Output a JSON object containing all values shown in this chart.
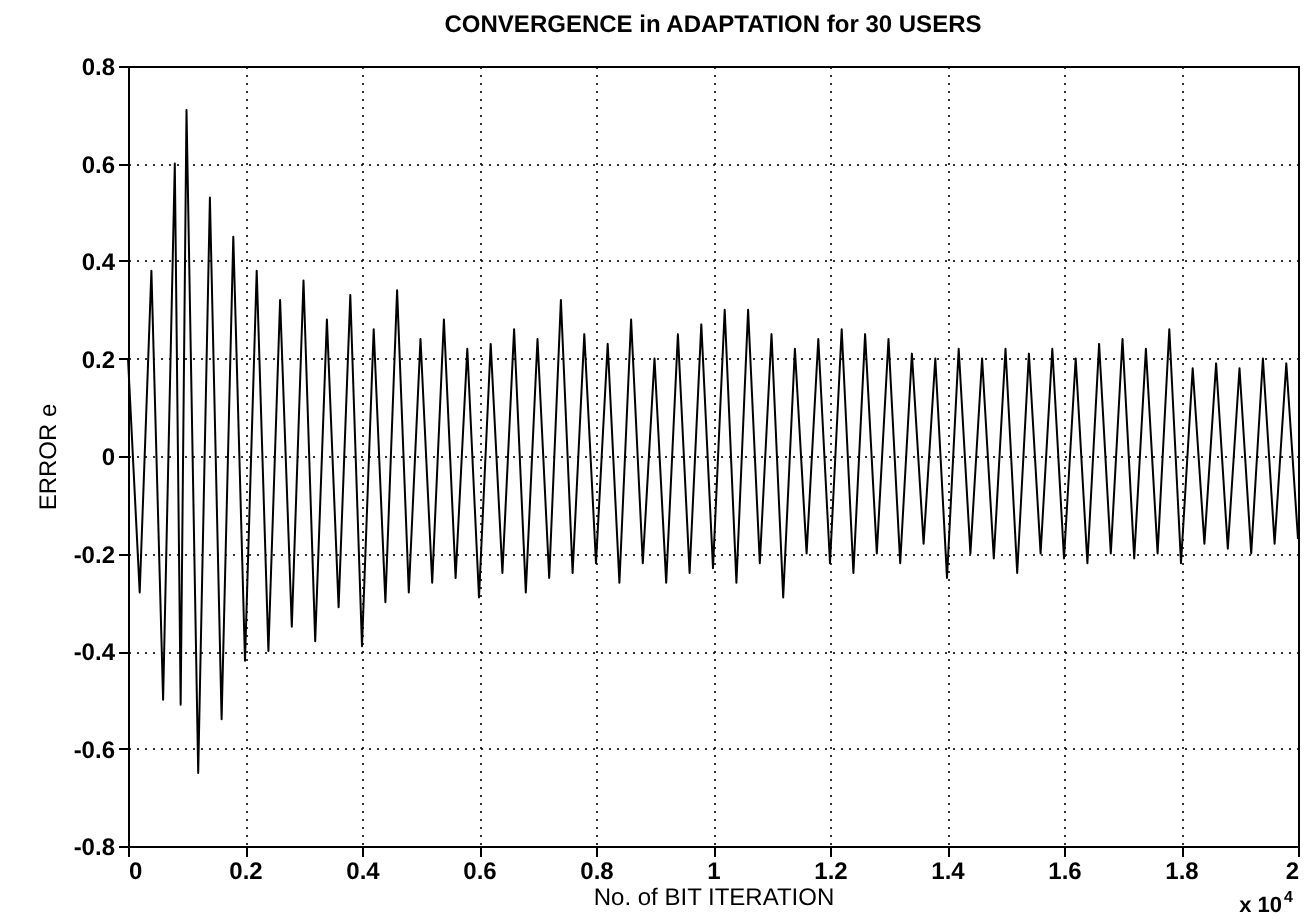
{
  "chart_data": {
    "type": "line",
    "title": "CONVERGENCE in ADAPTATION for 30 USERS",
    "xlabel": "No. of BIT ITERATION",
    "ylabel": "ERROR e",
    "annotations": [
      "x 10$^{4}$"
    ],
    "x": [
      0,
      0.02,
      0.04,
      0.06,
      0.08,
      0.09,
      0.1,
      0.12,
      0.14,
      0.16,
      0.18,
      0.2,
      0.22,
      0.24,
      0.26,
      0.28,
      0.3,
      0.32,
      0.34,
      0.36,
      0.38,
      0.4,
      0.42,
      0.44,
      0.46,
      0.48,
      0.5,
      0.52,
      0.54,
      0.56,
      0.58,
      0.6,
      0.62,
      0.64,
      0.66,
      0.68,
      0.7,
      0.72,
      0.74,
      0.76,
      0.78,
      0.8,
      0.82,
      0.84,
      0.86,
      0.88,
      0.9,
      0.92,
      0.94,
      0.96,
      0.98,
      1,
      1.02,
      1.04,
      1.06,
      1.08,
      1.1,
      1.12,
      1.14,
      1.16,
      1.18,
      1.2,
      1.22,
      1.24,
      1.26,
      1.28,
      1.3,
      1.32,
      1.34,
      1.36,
      1.38,
      1.4,
      1.42,
      1.44,
      1.46,
      1.48,
      1.5,
      1.52,
      1.54,
      1.56,
      1.58,
      1.6,
      1.62,
      1.64,
      1.66,
      1.68,
      1.7,
      1.72,
      1.74,
      1.76,
      1.78,
      1.8,
      1.82,
      1.84,
      1.86,
      1.88,
      1.9,
      1.92,
      1.94,
      1.96,
      1.98,
      2
    ],
    "series": [
      {
        "color": "#000000",
        "values": [
          0.2,
          -0.28,
          0.38,
          -0.5,
          0.6,
          -0.51,
          0.71,
          -0.65,
          0.53,
          -0.54,
          0.45,
          -0.42,
          0.38,
          -0.4,
          0.32,
          -0.35,
          0.36,
          -0.38,
          0.28,
          -0.31,
          0.33,
          -0.39,
          0.26,
          -0.3,
          0.34,
          -0.28,
          0.24,
          -0.26,
          0.28,
          -0.25,
          0.22,
          -0.29,
          0.23,
          -0.24,
          0.26,
          -0.28,
          0.24,
          -0.25,
          0.32,
          -0.24,
          0.25,
          -0.22,
          0.23,
          -0.26,
          0.28,
          -0.22,
          0.2,
          -0.26,
          0.25,
          -0.24,
          0.27,
          -0.23,
          0.3,
          -0.26,
          0.3,
          -0.22,
          0.25,
          -0.29,
          0.22,
          -0.2,
          0.24,
          -0.22,
          0.26,
          -0.24,
          0.25,
          -0.2,
          0.24,
          -0.22,
          0.21,
          -0.18,
          0.2,
          -0.25,
          0.22,
          -0.2,
          0.2,
          -0.21,
          0.22,
          -0.24,
          0.21,
          -0.2,
          0.22,
          -0.21,
          0.2,
          -0.22,
          0.23,
          -0.2,
          0.24,
          -0.21,
          0.22,
          -0.2,
          0.26,
          -0.22,
          0.18,
          -0.18,
          0.19,
          -0.19,
          0.18,
          -0.2,
          0.2,
          -0.18,
          0.19,
          -0.17
        ]
      }
    ],
    "xlim": [
      0,
      2
    ],
    "xticks": [
      0,
      0.2,
      0.4,
      0.6,
      0.8,
      1,
      1.2,
      1.4,
      1.6,
      1.8,
      2
    ],
    "ylim": [
      -0.8,
      0.8
    ],
    "yticks": [
      -0.8,
      -0.6,
      -0.4,
      -0.2,
      0,
      0.2,
      0.4,
      0.6,
      0.8
    ],
    "grid": true,
    "marker": "none",
    "line_style": "solid"
  }
}
